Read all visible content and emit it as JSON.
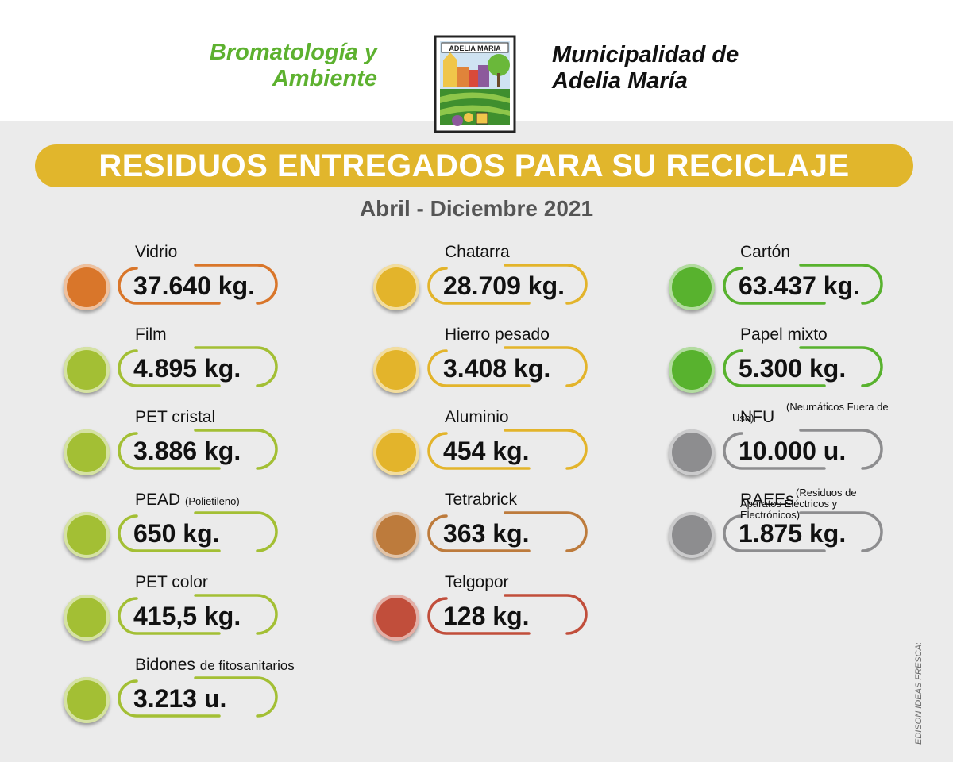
{
  "header": {
    "department": "Bromatología y Ambiente",
    "municipality": "Municipalidad de Adelia María",
    "logo_text": "ADELIA MARIA"
  },
  "banner_title": "RESIDUOS ENTREGADOS PARA SU RECICLAJE",
  "subtitle": "Abril - Diciembre 2021",
  "colors": {
    "orange": "#d9762a",
    "lime": "#a3bf34",
    "yellow": "#e3b42b",
    "green": "#58b22e",
    "gray": "#8d8d8f",
    "brown": "#bd7b3c",
    "red": "#c14e3b",
    "banner": "#e1b62c"
  },
  "items": [
    {
      "label": "Vidrio",
      "note": "",
      "value": "37.640 kg.",
      "color": "#d9762a"
    },
    {
      "label": "Film",
      "note": "",
      "value": "4.895 kg.",
      "color": "#a3bf34"
    },
    {
      "label": "PET cristal",
      "note": "",
      "value": "3.886 kg.",
      "color": "#a3bf34"
    },
    {
      "label": "PEAD",
      "note": "(Polietileno)",
      "value": "650 kg.",
      "color": "#a3bf34"
    },
    {
      "label": "PET color",
      "note": "",
      "value": "415,5 kg.",
      "color": "#a3bf34"
    },
    {
      "label": "Bidones",
      "note": "de fitosanitarios",
      "value": "3.213 u.",
      "color": "#a3bf34"
    },
    {
      "label": "Chatarra",
      "note": "",
      "value": "28.709 kg.",
      "color": "#e3b42b"
    },
    {
      "label": "Hierro pesado",
      "note": "",
      "value": "3.408 kg.",
      "color": "#e3b42b"
    },
    {
      "label": "Aluminio",
      "note": "",
      "value": "454 kg.",
      "color": "#e3b42b"
    },
    {
      "label": "Tetrabrick",
      "note": "",
      "value": "363 kg.",
      "color": "#bd7b3c"
    },
    {
      "label": "Telgopor",
      "note": "",
      "value": "128 kg.",
      "color": "#c14e3b"
    },
    {
      "label": "Cartón",
      "note": "",
      "value": "63.437 kg.",
      "color": "#58b22e"
    },
    {
      "label": "Papel mixto",
      "note": "",
      "value": "5.300 kg.",
      "color": "#58b22e"
    },
    {
      "label": "NFU",
      "note": "(Neumáticos Fuera de Uso)",
      "value": "10.000 u.",
      "color": "#8d8d8f"
    },
    {
      "label": "RAEEs",
      "note": "(Residuos de Aparatos Eléctricos y Electrónicos)",
      "value": "1.875 kg.",
      "color": "#8d8d8f"
    }
  ],
  "credit": "EDISON IDEAS FRESCAS"
}
